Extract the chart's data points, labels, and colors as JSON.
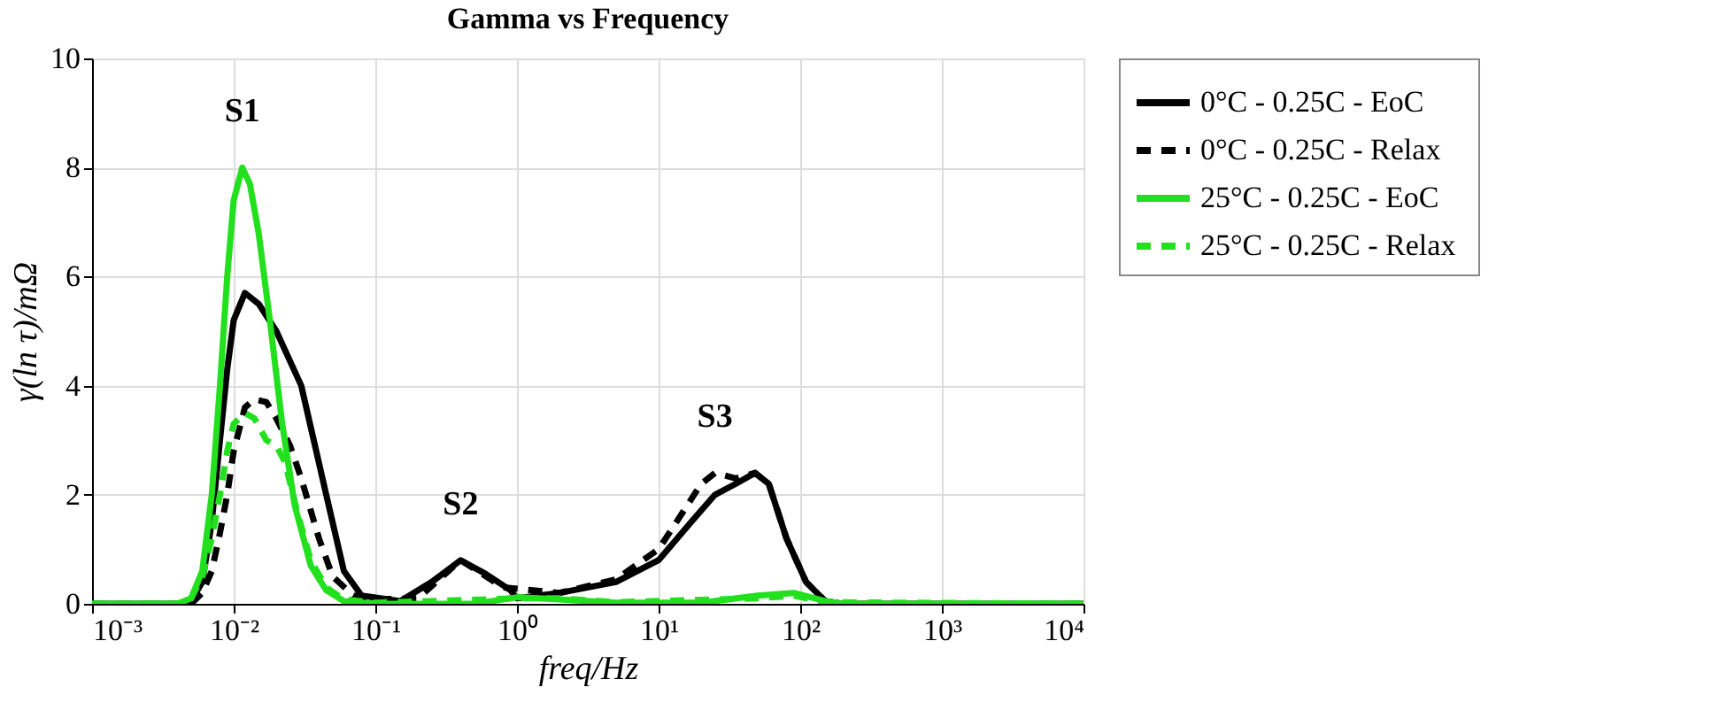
{
  "chart_data": {
    "type": "line",
    "title": "Gamma vs Frequency",
    "xlabel": "freq/Hz",
    "ylabel": "γ(ln τ)/mΩ",
    "log": "x",
    "grid": true,
    "legend": "right",
    "marker": "none",
    "xlim": [
      0.001,
      10000
    ],
    "ylim": [
      0,
      10
    ],
    "xticks": [
      {
        "value": 0.001,
        "label": "10⁻³"
      },
      {
        "value": 0.01,
        "label": "10⁻²"
      },
      {
        "value": 0.1,
        "label": "10⁻¹"
      },
      {
        "value": 1,
        "label": "10⁰"
      },
      {
        "value": 10,
        "label": "10¹"
      },
      {
        "value": 100,
        "label": "10²"
      },
      {
        "value": 1000,
        "label": "10³"
      },
      {
        "value": 10000,
        "label": "10⁴"
      }
    ],
    "yticks": [
      0,
      2,
      4,
      6,
      8,
      10
    ],
    "annotations": [
      {
        "text": "S1",
        "x": 0.0115,
        "y": 8
      },
      {
        "text": "S2",
        "x": 0.4,
        "y": 0.8
      },
      {
        "text": "S3",
        "x": 25,
        "y": 2.4
      }
    ],
    "series": [
      {
        "name": "0°C - 0.25C - EoC",
        "color": "#000000",
        "line_style": "solid",
        "x": [
          0.001,
          0.004,
          0.005,
          0.006,
          0.007,
          0.008,
          0.009,
          0.01,
          0.012,
          0.015,
          0.02,
          0.03,
          0.045,
          0.06,
          0.08,
          0.15,
          0.25,
          0.4,
          0.6,
          0.9,
          1,
          2,
          5,
          10,
          17,
          25,
          35,
          48,
          60,
          80,
          110,
          150,
          200,
          10000
        ],
        "values": [
          0,
          0,
          0.05,
          0.4,
          1.5,
          3,
          4.3,
          5.2,
          5.7,
          5.5,
          5.0,
          4.0,
          2.0,
          0.6,
          0.15,
          0.05,
          0.4,
          0.8,
          0.55,
          0.25,
          0.1,
          0.2,
          0.4,
          0.8,
          1.5,
          2.0,
          2.2,
          2.4,
          2.2,
          1.2,
          0.4,
          0.05,
          0,
          0
        ]
      },
      {
        "name": "0°C - 0.25C - Relax",
        "color": "#000000",
        "line_style": "dashed",
        "x": [
          0.001,
          0.005,
          0.006,
          0.007,
          0.008,
          0.009,
          0.01,
          0.012,
          0.014,
          0.017,
          0.02,
          0.025,
          0.03,
          0.04,
          0.05,
          0.07,
          0.1,
          0.2,
          0.4,
          0.8,
          2,
          5,
          10,
          15,
          20,
          25,
          35,
          48,
          60,
          80,
          110,
          150,
          200,
          10000
        ],
        "values": [
          0,
          0,
          0.2,
          0.6,
          1.3,
          2,
          2.8,
          3.6,
          3.75,
          3.7,
          3.4,
          2.9,
          2.3,
          1.2,
          0.5,
          0.15,
          0.08,
          0.1,
          0.8,
          0.3,
          0.2,
          0.45,
          1,
          1.7,
          2.2,
          2.4,
          2.3,
          2.4,
          2.2,
          1.2,
          0.4,
          0.05,
          0,
          0
        ]
      },
      {
        "name": "25°C - 0.25C - EoC",
        "color": "#22e01e",
        "line_style": "solid",
        "x": [
          0.001,
          0.004,
          0.005,
          0.006,
          0.007,
          0.008,
          0.009,
          0.01,
          0.0115,
          0.013,
          0.015,
          0.018,
          0.022,
          0.027,
          0.035,
          0.045,
          0.06,
          0.1,
          0.5,
          1,
          2,
          5,
          20,
          50,
          90,
          150,
          200,
          10000
        ],
        "values": [
          0,
          0,
          0.1,
          0.6,
          2,
          4,
          6,
          7.4,
          8,
          7.7,
          6.8,
          5.2,
          3.3,
          1.8,
          0.7,
          0.25,
          0.05,
          0,
          0,
          0.12,
          0.08,
          0.02,
          0.02,
          0.15,
          0.2,
          0.05,
          0,
          0
        ]
      },
      {
        "name": "25°C - 0.25C  - Relax",
        "color": "#22e01e",
        "line_style": "dashed",
        "x": [
          0.001,
          0.004,
          0.005,
          0.006,
          0.007,
          0.008,
          0.009,
          0.01,
          0.012,
          0.014,
          0.017,
          0.02,
          0.023,
          0.028,
          0.035,
          0.045,
          0.06,
          0.1,
          1,
          2,
          5,
          50,
          90,
          150,
          10000
        ],
        "values": [
          0,
          0,
          0.1,
          0.5,
          1.2,
          2,
          2.8,
          3.3,
          3.5,
          3.4,
          3.0,
          2.9,
          2.6,
          1.7,
          0.8,
          0.3,
          0.08,
          0.02,
          0.1,
          0.1,
          0.03,
          0.1,
          0.15,
          0.03,
          0
        ]
      }
    ]
  }
}
